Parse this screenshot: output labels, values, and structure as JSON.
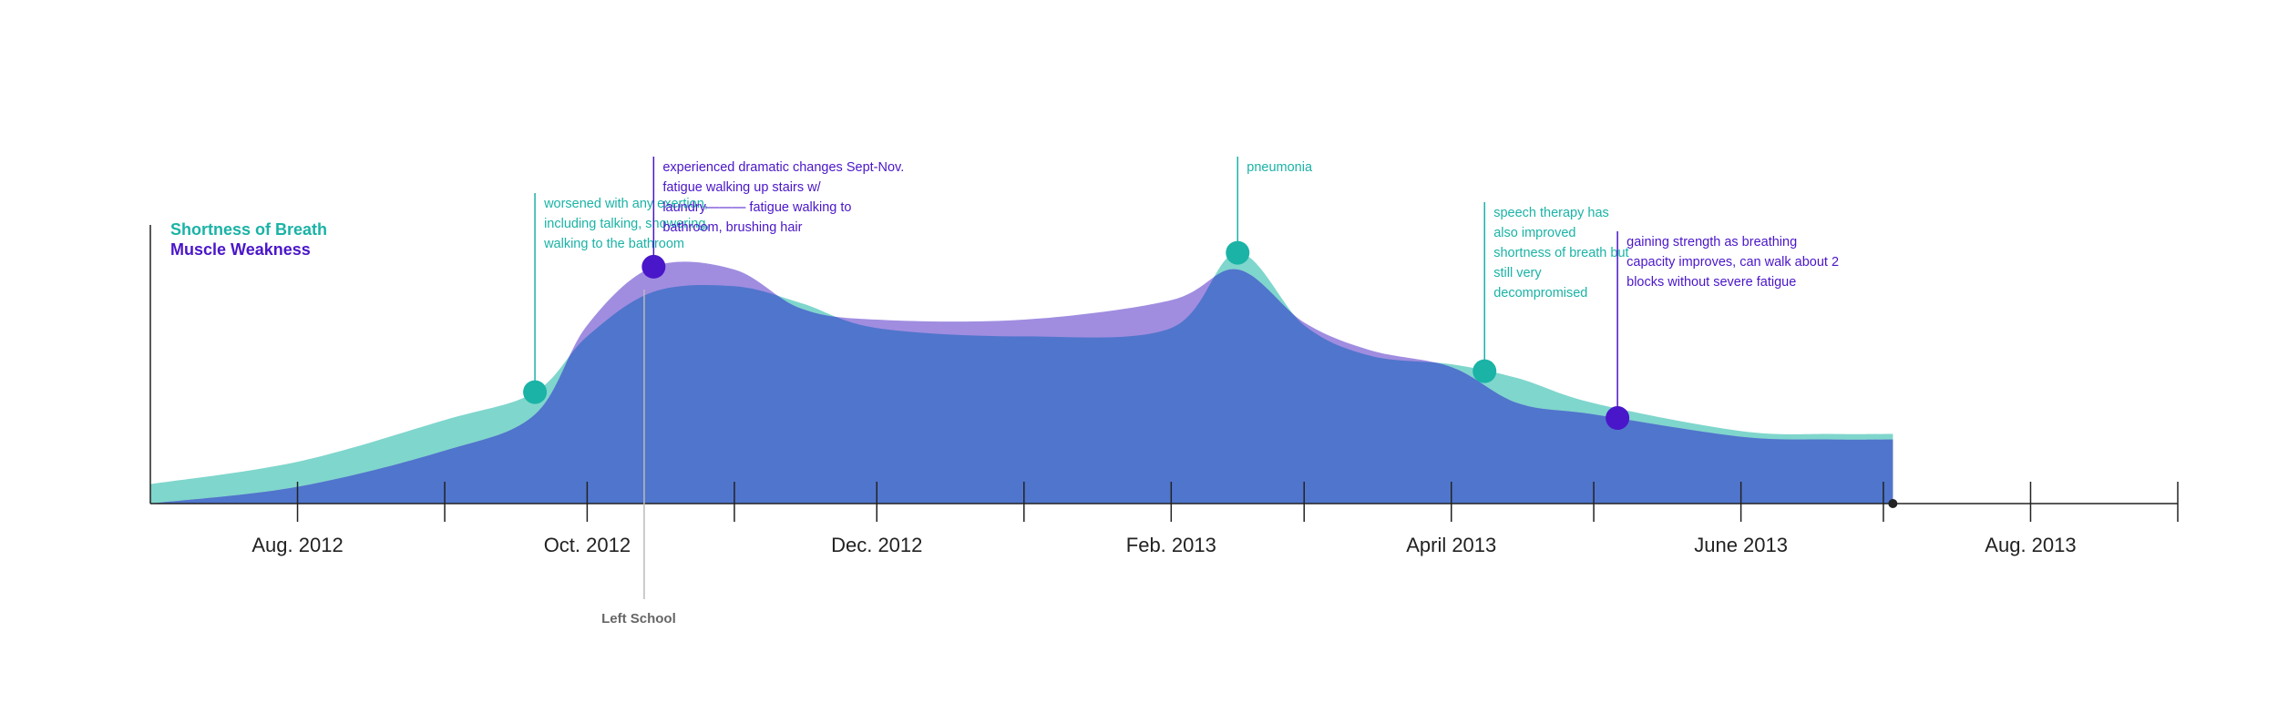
{
  "colors": {
    "breath": "#1ab3a6",
    "breath_area": "#7fd6cc",
    "weakness": "#4a16c9",
    "weakness_area": "#a08de0",
    "overlap": "#5075cc",
    "axis": "#222222",
    "event_line": "#bbbbbb"
  },
  "chart_data": {
    "type": "area",
    "x_unit": "date",
    "xlim": [
      "2012-07-01",
      "2013-09-01"
    ],
    "ylim": [
      0,
      10
    ],
    "grid": false,
    "legend_position": "top-left",
    "xlabel": "",
    "ylabel": "",
    "x_ticks": [
      "2012-07-01",
      "2012-08-01",
      "2012-09-01",
      "2012-10-01",
      "2012-11-01",
      "2012-12-01",
      "2013-01-01",
      "2013-02-01",
      "2013-03-01",
      "2013-04-01",
      "2013-05-01",
      "2013-06-01",
      "2013-07-01",
      "2013-08-01",
      "2013-09-01"
    ],
    "tick_labels": [
      {
        "label": "Aug. 2012",
        "date": "2012-08-01"
      },
      {
        "label": "Oct. 2012",
        "date": "2012-10-01"
      },
      {
        "label": "Dec. 2012",
        "date": "2012-12-01"
      },
      {
        "label": "Feb. 2013",
        "date": "2013-02-01"
      },
      {
        "label": "April 2013",
        "date": "2013-04-01"
      },
      {
        "label": "June 2013",
        "date": "2013-06-01"
      },
      {
        "label": "Aug. 2013",
        "date": "2013-08-01"
      }
    ],
    "series": [
      {
        "name": "Shortness of Breath",
        "color": "#1ab3a6",
        "x": [
          "2012-07-01",
          "2012-08-01",
          "2012-09-01",
          "2012-09-20",
          "2012-10-01",
          "2012-10-15",
          "2012-11-01",
          "2012-11-15",
          "2012-12-01",
          "2013-01-01",
          "2013-02-01",
          "2013-02-15",
          "2013-03-01",
          "2013-03-15",
          "2013-04-01",
          "2013-04-15",
          "2013-05-01",
          "2013-06-01",
          "2013-06-20",
          "2013-07-03"
        ],
        "values": [
          0.7,
          1.5,
          3.0,
          4.0,
          6.0,
          7.6,
          7.8,
          7.2,
          6.3,
          6.0,
          6.3,
          9.0,
          6.4,
          5.3,
          5.0,
          4.5,
          3.6,
          2.6,
          2.5,
          2.5
        ]
      },
      {
        "name": "Muscle Weakness",
        "color": "#4a16c9",
        "x": [
          "2012-07-01",
          "2012-08-01",
          "2012-09-01",
          "2012-09-20",
          "2012-10-01",
          "2012-10-15",
          "2012-11-01",
          "2012-11-15",
          "2012-12-01",
          "2013-01-01",
          "2013-02-01",
          "2013-02-15",
          "2013-03-01",
          "2013-03-15",
          "2013-04-01",
          "2013-04-15",
          "2013-05-01",
          "2013-06-01",
          "2013-06-20",
          "2013-07-03"
        ],
        "values": [
          0.0,
          0.6,
          1.9,
          3.2,
          6.4,
          8.5,
          8.4,
          7.0,
          6.6,
          6.6,
          7.3,
          8.4,
          6.5,
          5.5,
          4.9,
          3.6,
          3.2,
          2.4,
          2.3,
          2.3
        ]
      }
    ],
    "annotations": [
      {
        "series": 0,
        "date": "2012-09-20",
        "text": [
          "worsened with any exertion,",
          "including talking, showering,",
          "walking to the bathroom"
        ]
      },
      {
        "series": 1,
        "date": "2012-10-15",
        "text": [
          "experienced dramatic changes Sept-Nov.",
          "fatigue walking up stairs w/",
          "laundry——— fatigue walking to",
          "bathroom, brushing hair"
        ]
      },
      {
        "series": 0,
        "date": "2013-02-15",
        "text": [
          "pneumonia"
        ]
      },
      {
        "series": 0,
        "date": "2013-04-08",
        "text": [
          "speech therapy has",
          "also improved",
          "shortness of breath but",
          "still very",
          "decompromised"
        ]
      },
      {
        "series": 1,
        "date": "2013-05-06",
        "text": [
          "gaining strength as breathing",
          "capacity improves, can walk about 2",
          "blocks without severe fatigue"
        ]
      }
    ],
    "events": [
      {
        "label": "Left School",
        "date": "2012-10-13"
      }
    ],
    "end_marker": "2013-07-03"
  }
}
